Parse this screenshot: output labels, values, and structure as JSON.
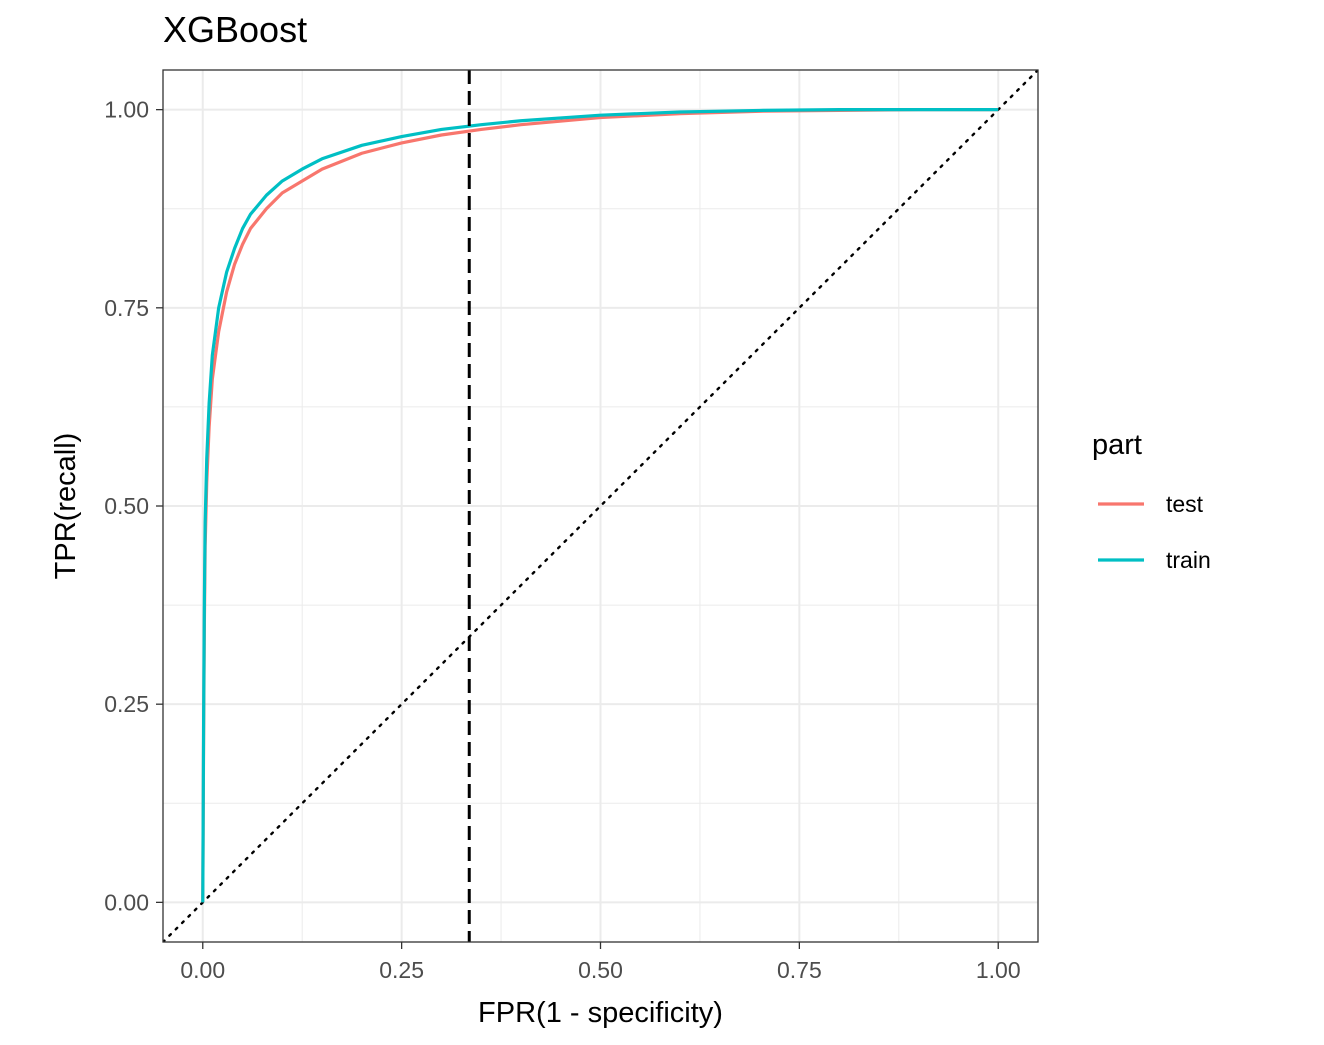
{
  "chart_data": {
    "type": "line",
    "title": "XGBoost",
    "xlabel": "FPR(1 - specificity)",
    "ylabel": "TPR(recall)",
    "xlim": [
      -0.05,
      1.05
    ],
    "ylim": [
      -0.05,
      1.05
    ],
    "x_ticks": [
      0,
      0.25,
      0.5,
      0.75,
      1.0
    ],
    "x_tick_labels": [
      "0.00",
      "0.25",
      "0.50",
      "0.75",
      "1.00"
    ],
    "y_ticks": [
      0,
      0.25,
      0.5,
      0.75,
      1.0
    ],
    "y_tick_labels": [
      "0.00",
      "0.25",
      "0.50",
      "0.75",
      "1.00"
    ],
    "grid": true,
    "legend": {
      "title": "part",
      "placement": "right"
    },
    "series": [
      {
        "name": "test",
        "color": "#F8766D",
        "x": [
          0,
          0.001,
          0.002,
          0.003,
          0.005,
          0.008,
          0.012,
          0.02,
          0.03,
          0.04,
          0.05,
          0.06,
          0.08,
          0.1,
          0.125,
          0.15,
          0.2,
          0.25,
          0.3,
          0.35,
          0.4,
          0.5,
          0.6,
          0.7,
          0.8,
          0.9,
          1.0
        ],
        "y": [
          0,
          0.2,
          0.35,
          0.45,
          0.53,
          0.6,
          0.66,
          0.72,
          0.77,
          0.805,
          0.83,
          0.85,
          0.875,
          0.895,
          0.91,
          0.925,
          0.945,
          0.958,
          0.968,
          0.975,
          0.981,
          0.99,
          0.995,
          0.998,
          0.999,
          1.0,
          1.0
        ]
      },
      {
        "name": "train",
        "color": "#00BFC4",
        "x": [
          0,
          0.001,
          0.002,
          0.003,
          0.005,
          0.008,
          0.012,
          0.02,
          0.03,
          0.04,
          0.05,
          0.06,
          0.08,
          0.1,
          0.125,
          0.15,
          0.2,
          0.25,
          0.3,
          0.35,
          0.4,
          0.5,
          0.6,
          0.7,
          0.8,
          0.9,
          1.0
        ],
        "y": [
          0,
          0.22,
          0.38,
          0.48,
          0.56,
          0.63,
          0.69,
          0.75,
          0.795,
          0.825,
          0.85,
          0.868,
          0.892,
          0.91,
          0.925,
          0.938,
          0.955,
          0.966,
          0.975,
          0.981,
          0.986,
          0.993,
          0.997,
          0.999,
          1.0,
          1.0,
          1.0
        ]
      }
    ],
    "reference_lines": [
      {
        "kind": "diagonal",
        "style": "dotted",
        "color": "#000000"
      },
      {
        "kind": "vertical",
        "x": 0.335,
        "style": "dashed",
        "color": "#000000"
      }
    ]
  }
}
